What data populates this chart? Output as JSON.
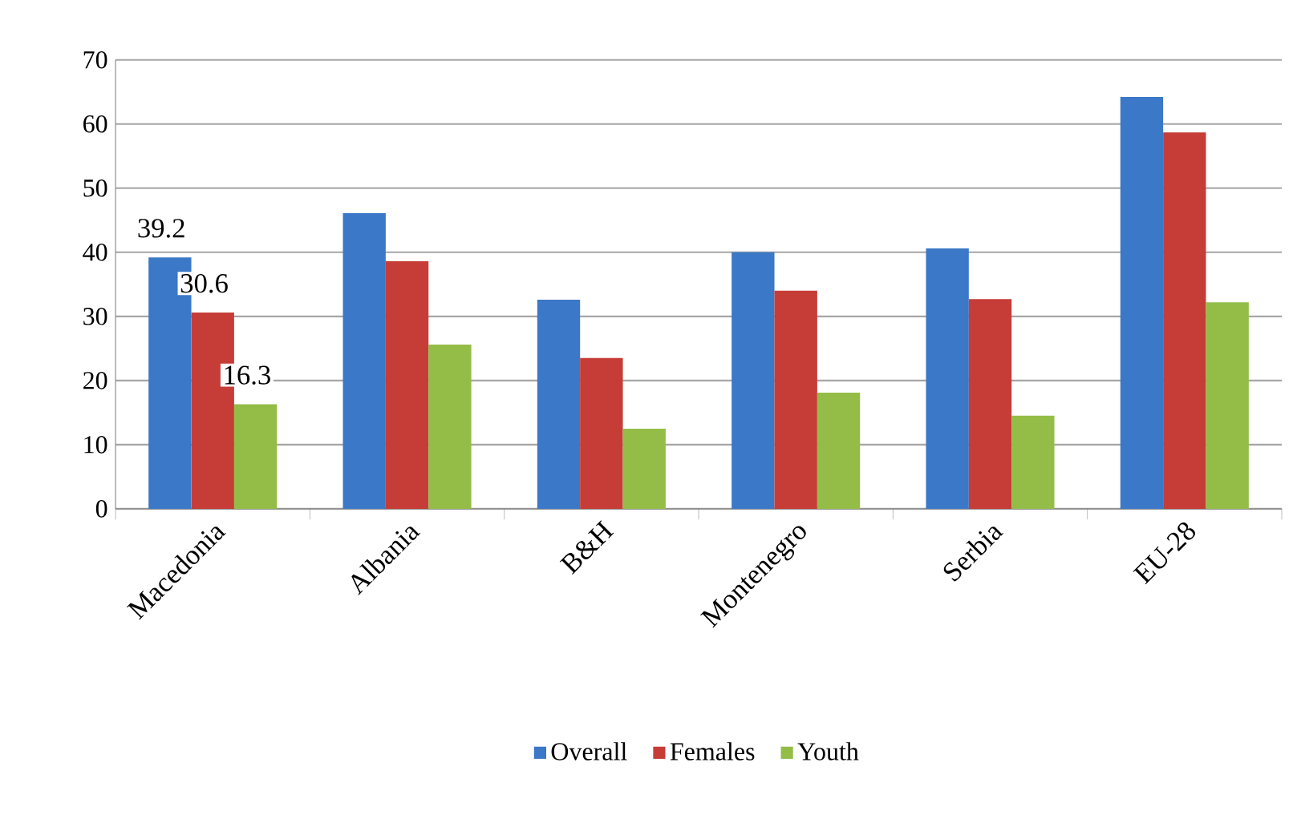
{
  "chart_data": {
    "type": "bar",
    "categories": [
      "Macedonia",
      "Albania",
      "B&H",
      "Montenegro",
      "Serbia",
      "EU-28"
    ],
    "series": [
      {
        "name": "Overall",
        "color": "#3b78c7",
        "values": [
          39.2,
          46.1,
          32.6,
          40.0,
          40.6,
          64.2
        ],
        "value_labels": [
          "39.2",
          null,
          null,
          null,
          null,
          null
        ]
      },
      {
        "name": "Females",
        "color": "#c63c37",
        "values": [
          30.6,
          38.6,
          23.5,
          34.0,
          32.7,
          58.7
        ],
        "value_labels": [
          "30.6",
          null,
          null,
          null,
          null,
          null
        ]
      },
      {
        "name": "Youth",
        "color": "#93bd47",
        "values": [
          16.3,
          25.6,
          12.5,
          18.1,
          14.5,
          32.2
        ],
        "value_labels": [
          "16.3",
          null,
          null,
          null,
          null,
          null
        ]
      }
    ],
    "ylim": [
      0,
      70
    ],
    "yticks": [
      0,
      10,
      20,
      30,
      40,
      50,
      60,
      70
    ],
    "grid": "y",
    "legend": "bottom"
  }
}
